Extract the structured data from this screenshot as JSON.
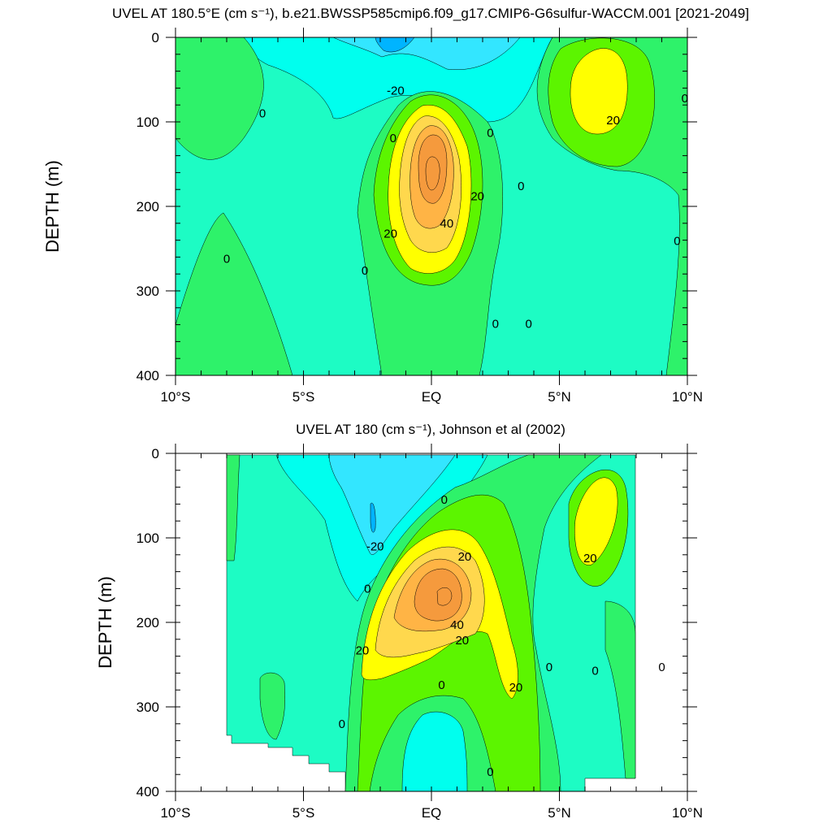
{
  "colors": {
    "lev_m40": "#00b4ff",
    "lev_m20": "#33e6ff",
    "lev_m10": "#00ffee",
    "lev_0a": "#1dfcc4",
    "lev_0b": "#2ef26a",
    "lev_10": "#5cf500",
    "lev_20": "#ffff00",
    "lev_30": "#ffd84d",
    "lev_40": "#ffb445",
    "lev_50": "#f59a3d",
    "line": "#000000"
  },
  "chart_data": [
    {
      "type": "contour",
      "title": "UVEL AT 180.5°E (cm s⁻¹), b.e21.BWSSP585cmip6.f09_g17.CMIP6-G6sulfur-WACCM.001 [2021-2049]",
      "ylabel": "DEPTH (m)",
      "xlabel": "",
      "x_range": [
        -10,
        10
      ],
      "y_range": [
        0,
        400
      ],
      "y_inverted": true,
      "x_ticks": [
        -10,
        -5,
        0,
        5,
        10
      ],
      "x_tick_labels": [
        "10°S",
        "5°S",
        "EQ",
        "5°N",
        "10°N"
      ],
      "y_ticks": [
        0,
        100,
        200,
        300,
        400
      ],
      "y_tick_labels": [
        "0",
        "100",
        "200",
        "300",
        "400"
      ],
      "contour_labels": [
        {
          "text": "0",
          "x": -6.6,
          "y": 90
        },
        {
          "text": "0",
          "x": -8.0,
          "y": 262
        },
        {
          "text": "-20",
          "x": -1.4,
          "y": 63
        },
        {
          "text": "0",
          "x": -1.5,
          "y": 119
        },
        {
          "text": "0",
          "x": -2.6,
          "y": 276
        },
        {
          "text": "20",
          "x": -1.6,
          "y": 232
        },
        {
          "text": "40",
          "x": 0.6,
          "y": 220
        },
        {
          "text": "20",
          "x": 1.8,
          "y": 188
        },
        {
          "text": "0",
          "x": 2.3,
          "y": 113
        },
        {
          "text": "0",
          "x": 3.5,
          "y": 176
        },
        {
          "text": "0",
          "x": 2.5,
          "y": 339
        },
        {
          "text": "0",
          "x": 3.8,
          "y": 339
        },
        {
          "text": "20",
          "x": 7.1,
          "y": 98
        },
        {
          "text": "0",
          "x": 9.9,
          "y": 72
        },
        {
          "text": "0",
          "x": 9.6,
          "y": 241
        }
      ]
    },
    {
      "type": "contour",
      "title": "UVEL AT 180 (cm s⁻¹), Johnson et al (2002)",
      "ylabel": "DEPTH (m)",
      "xlabel": "",
      "x_range": [
        -10,
        10
      ],
      "y_range": [
        0,
        400
      ],
      "y_inverted": true,
      "x_ticks": [
        -10,
        -5,
        0,
        5,
        10
      ],
      "x_tick_labels": [
        "10°S",
        "5°S",
        "EQ",
        "5°N",
        "10°N"
      ],
      "y_ticks": [
        0,
        100,
        200,
        300,
        400
      ],
      "y_tick_labels": [
        "0",
        "100",
        "200",
        "300",
        "400"
      ],
      "contour_labels": [
        {
          "text": "0",
          "x": 0.5,
          "y": 55
        },
        {
          "text": "-20",
          "x": -2.2,
          "y": 110
        },
        {
          "text": "20",
          "x": 1.3,
          "y": 122
        },
        {
          "text": "0",
          "x": -2.5,
          "y": 160
        },
        {
          "text": "40",
          "x": 1.0,
          "y": 203
        },
        {
          "text": "20",
          "x": 1.2,
          "y": 221
        },
        {
          "text": "20",
          "x": -2.7,
          "y": 233
        },
        {
          "text": "0",
          "x": 0.4,
          "y": 274
        },
        {
          "text": "20",
          "x": 3.3,
          "y": 277
        },
        {
          "text": "0",
          "x": -3.5,
          "y": 320
        },
        {
          "text": "0",
          "x": 2.3,
          "y": 377
        },
        {
          "text": "20",
          "x": 6.2,
          "y": 124
        },
        {
          "text": "0",
          "x": 4.6,
          "y": 253
        },
        {
          "text": "0",
          "x": 6.4,
          "y": 257
        },
        {
          "text": "0",
          "x": 9.0,
          "y": 253
        }
      ]
    }
  ]
}
